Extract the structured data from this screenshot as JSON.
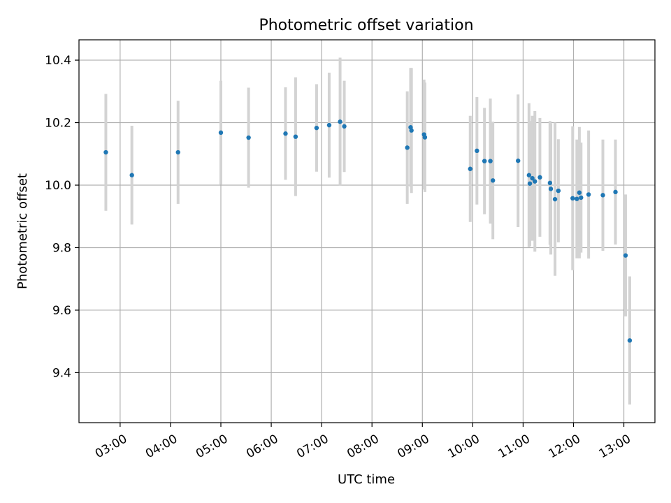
{
  "chart_data": {
    "type": "scatter",
    "title": "Photometric offset variation",
    "xlabel": "UTC time",
    "ylabel": "Photometric offset",
    "x_ticks": [
      "03:00",
      "04:00",
      "05:00",
      "06:00",
      "07:00",
      "08:00",
      "09:00",
      "10:00",
      "11:00",
      "12:00",
      "13:00"
    ],
    "y_ticks": [
      9.4,
      9.6,
      9.8,
      10.0,
      10.2,
      10.4
    ],
    "xlim": [
      "02:11",
      "13:37"
    ],
    "ylim": [
      9.24,
      10.465
    ],
    "grid": true,
    "colors": {
      "point": "#1f77b4",
      "errorbar": "#d3d3d3",
      "grid": "#b0b0b0"
    },
    "points": [
      {
        "x": "02:43",
        "y": 10.105,
        "err": 0.187
      },
      {
        "x": "03:14",
        "y": 10.032,
        "err": 0.158
      },
      {
        "x": "04:09",
        "y": 10.105,
        "err": 0.165
      },
      {
        "x": "05:00",
        "y": 10.168,
        "err": 0.166
      },
      {
        "x": "05:33",
        "y": 10.152,
        "err": 0.16
      },
      {
        "x": "06:17",
        "y": 10.165,
        "err": 0.148
      },
      {
        "x": "06:29",
        "y": 10.155,
        "err": 0.19
      },
      {
        "x": "06:54",
        "y": 10.183,
        "err": 0.14
      },
      {
        "x": "07:09",
        "y": 10.192,
        "err": 0.168
      },
      {
        "x": "07:22",
        "y": 10.203,
        "err": 0.205
      },
      {
        "x": "07:27",
        "y": 10.188,
        "err": 0.146
      },
      {
        "x": "08:42",
        "y": 10.12,
        "err": 0.18
      },
      {
        "x": "08:46",
        "y": 10.185,
        "err": 0.19
      },
      {
        "x": "08:47",
        "y": 10.175,
        "err": 0.2
      },
      {
        "x": "09:02",
        "y": 10.162,
        "err": 0.176
      },
      {
        "x": "09:03",
        "y": 10.153,
        "err": 0.175
      },
      {
        "x": "09:57",
        "y": 10.052,
        "err": 0.17
      },
      {
        "x": "10:05",
        "y": 10.11,
        "err": 0.172
      },
      {
        "x": "10:14",
        "y": 10.077,
        "err": 0.17
      },
      {
        "x": "10:21",
        "y": 10.077,
        "err": 0.2
      },
      {
        "x": "10:24",
        "y": 10.015,
        "err": 0.188
      },
      {
        "x": "10:54",
        "y": 10.078,
        "err": 0.212
      },
      {
        "x": "11:07",
        "y": 10.032,
        "err": 0.23
      },
      {
        "x": "11:08",
        "y": 10.005,
        "err": 0.2
      },
      {
        "x": "11:11",
        "y": 10.022,
        "err": 0.2
      },
      {
        "x": "11:14",
        "y": 10.012,
        "err": 0.225
      },
      {
        "x": "11:20",
        "y": 10.025,
        "err": 0.19
      },
      {
        "x": "11:32",
        "y": 10.007,
        "err": 0.198
      },
      {
        "x": "11:33",
        "y": 9.988,
        "err": 0.21
      },
      {
        "x": "11:38",
        "y": 9.955,
        "err": 0.245
      },
      {
        "x": "11:42",
        "y": 9.982,
        "err": 0.165
      },
      {
        "x": "11:59",
        "y": 9.958,
        "err": 0.23
      },
      {
        "x": "12:04",
        "y": 9.956,
        "err": 0.19
      },
      {
        "x": "12:07",
        "y": 9.976,
        "err": 0.21
      },
      {
        "x": "12:09",
        "y": 9.96,
        "err": 0.176
      },
      {
        "x": "12:18",
        "y": 9.97,
        "err": 0.205
      },
      {
        "x": "12:35",
        "y": 9.968,
        "err": 0.178
      },
      {
        "x": "12:50",
        "y": 9.978,
        "err": 0.168
      },
      {
        "x": "13:02",
        "y": 9.775,
        "err": 0.195
      },
      {
        "x": "13:07",
        "y": 9.503,
        "err": 0.205
      }
    ]
  }
}
